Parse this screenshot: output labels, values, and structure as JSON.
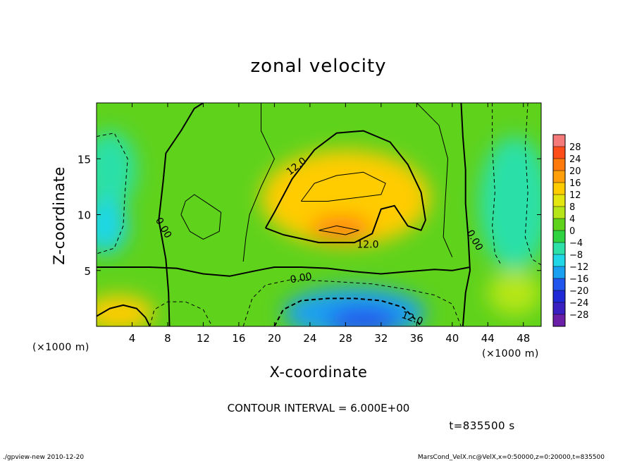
{
  "chart_data": {
    "type": "heatmap",
    "title": "zonal velocity",
    "xlabel": "X-coordinate",
    "ylabel": "Z-coordinate",
    "x_unit": "(×1000 m)",
    "y_unit": "(×1000 m)",
    "xlim": [
      0,
      50
    ],
    "ylim": [
      0,
      20
    ],
    "x_ticks": [
      4,
      8,
      12,
      16,
      20,
      24,
      28,
      32,
      36,
      40,
      44,
      48
    ],
    "y_ticks": [
      5,
      10,
      15
    ],
    "contour_interval_text": "CONTOUR INTERVAL = 6.000E+00",
    "time_text": "t=835500 s",
    "contour_labels": [
      {
        "text": "12.0",
        "x": 22.5,
        "y": 14.3,
        "angle": -38
      },
      {
        "text": "12.0",
        "x": 30.5,
        "y": 7.3,
        "angle": 0
      },
      {
        "text": "0.00",
        "x": 7.5,
        "y": 8.8,
        "angle": 60
      },
      {
        "text": "0.00",
        "x": 23.0,
        "y": 4.3,
        "angle": -10
      },
      {
        "text": "12.0",
        "x": 35.5,
        "y": 0.7,
        "angle": 20
      },
      {
        "text": "0.00",
        "x": 42.5,
        "y": 7.7,
        "angle": 60
      }
    ],
    "colorbar": {
      "levels": [
        28,
        24,
        20,
        16,
        12,
        8,
        4,
        0,
        -4,
        -8,
        -12,
        -16,
        -20,
        -24,
        -28
      ],
      "colors": [
        "#f47a7a",
        "#ff4d1a",
        "#ff7a0a",
        "#ff9f0a",
        "#ffcc00",
        "#e4e60f",
        "#b6e619",
        "#5fd21c",
        "#2fd241",
        "#2ce0a8",
        "#1fd7e6",
        "#1aa0f0",
        "#2055ee",
        "#1f2ad6",
        "#3a20c0",
        "#6a1fa6"
      ]
    },
    "field_blobs": [
      {
        "x": 28,
        "y": 12.5,
        "rx": 6.5,
        "ry": 2.2,
        "value": 22
      },
      {
        "x": 28,
        "y": 11.5,
        "rx": 9.5,
        "ry": 4.3,
        "value": 14
      },
      {
        "x": 27.5,
        "y": 8.8,
        "rx": 3.5,
        "ry": 1.0,
        "value": 20
      },
      {
        "x": 29,
        "y": 1.2,
        "rx": 8,
        "ry": 2.3,
        "value": -14
      },
      {
        "x": 30,
        "y": 0.5,
        "rx": 4,
        "ry": 1.2,
        "value": -18
      },
      {
        "x": 1.5,
        "y": 14,
        "rx": 3,
        "ry": 3.5,
        "value": -8
      },
      {
        "x": 1.0,
        "y": 9,
        "rx": 2.5,
        "ry": 2.5,
        "value": -10
      },
      {
        "x": 47,
        "y": 11,
        "rx": 4,
        "ry": 6,
        "value": -8
      },
      {
        "x": 47,
        "y": 3,
        "rx": 3,
        "ry": 2,
        "value": 6
      },
      {
        "x": 2.5,
        "y": 1.2,
        "rx": 4,
        "ry": 1.6,
        "value": 12
      }
    ]
  },
  "footer": {
    "left": "./gpview-new   2010-12-20",
    "right": "MarsCond_VelX.nc@VelX,x=0:50000,z=0:20000,t=835500"
  }
}
